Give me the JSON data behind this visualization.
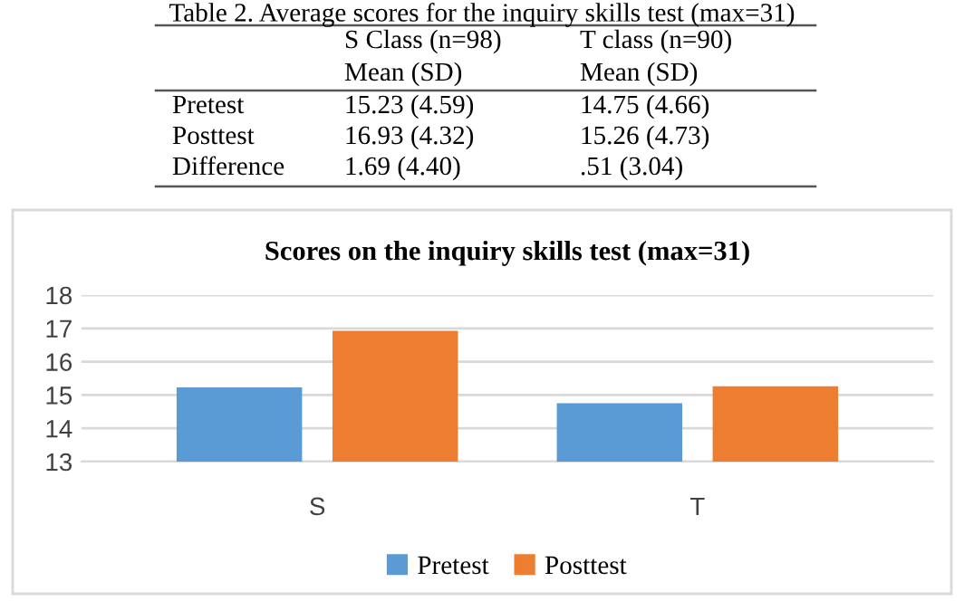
{
  "chart_data": {
    "type": "bar",
    "title": "Scores on the inquiry skills test (max=31)",
    "categories": [
      "S",
      "T"
    ],
    "series": [
      {
        "name": "Pretest",
        "color": "#5b9bd5",
        "values": [
          15.23,
          14.75
        ]
      },
      {
        "name": "Posttest",
        "color": "#ed7d31",
        "values": [
          16.93,
          15.26
        ]
      }
    ],
    "ylim": [
      13,
      18
    ],
    "yticks": [
      13,
      14,
      15,
      16,
      17,
      18
    ],
    "grid": "y",
    "legend": "bottom",
    "annotations": [
      "Table 2. Average scores for the inquiry skills test (max=31)",
      "S Class (n=98)",
      "T class (n=90)",
      "Mean (SD)",
      "Mean (SD)",
      "Pretest",
      "15.23 (4.59)",
      "14.75 (4.66)",
      "Posttest",
      "16.93 (4.32)",
      "15.26 (4.73)",
      "Difference",
      "1.69 (4.40)",
      ".51 (3.04)"
    ]
  }
}
